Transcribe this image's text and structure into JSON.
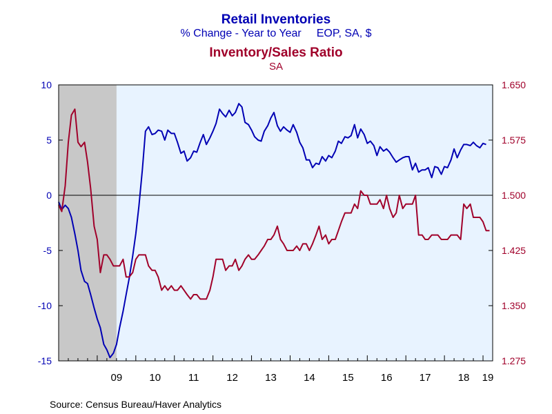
{
  "header": {
    "title1": "Retail Inventories",
    "subtitle1a": "% Change - Year to Year",
    "subtitle1b": "EOP, SA, $",
    "title2": "Inventory/Sales Ratio",
    "subtitle2": "SA"
  },
  "source": "Source:  Census Bureau/Haver Analytics",
  "colors": {
    "series1": "#0000b4",
    "series2": "#a0002a",
    "plot_bg": "#e8f3ff",
    "recession": "#c8c8c8"
  },
  "chart_data": {
    "type": "line",
    "x_tick_labels": [
      "09",
      "10",
      "11",
      "12",
      "13",
      "14",
      "15",
      "16",
      "17",
      "18",
      "19"
    ],
    "x_range": [
      2008.0,
      2019.25
    ],
    "recession_shade": [
      2008.0,
      2009.5
    ],
    "grid": false,
    "legend": "none",
    "left_axis": {
      "range": [
        -15,
        10
      ],
      "ticks": [
        "10",
        "5",
        "0",
        "-5",
        "-10",
        "-15"
      ]
    },
    "right_axis": {
      "range": [
        1.275,
        1.65
      ],
      "ticks": [
        "1.650",
        "1.575",
        "1.500",
        "1.425",
        "1.350",
        "1.275"
      ]
    },
    "series": [
      {
        "axis": "left",
        "points": [
          [
            2008.0,
            -0.6
          ],
          [
            2008.08,
            -1.3
          ],
          [
            2008.17,
            -0.9
          ],
          [
            2008.25,
            -1.2
          ],
          [
            2008.33,
            -2.0
          ],
          [
            2008.42,
            -3.5
          ],
          [
            2008.5,
            -5.0
          ],
          [
            2008.58,
            -6.8
          ],
          [
            2008.67,
            -7.8
          ],
          [
            2008.75,
            -8.0
          ],
          [
            2008.83,
            -9.0
          ],
          [
            2008.92,
            -10.2
          ],
          [
            2009.0,
            -11.2
          ],
          [
            2009.08,
            -12.0
          ],
          [
            2009.17,
            -13.5
          ],
          [
            2009.25,
            -14.0
          ],
          [
            2009.33,
            -14.7
          ],
          [
            2009.42,
            -14.3
          ],
          [
            2009.5,
            -13.5
          ],
          [
            2009.58,
            -12.0
          ],
          [
            2009.67,
            -10.5
          ],
          [
            2009.75,
            -9.0
          ],
          [
            2009.83,
            -7.5
          ],
          [
            2009.92,
            -5.5
          ],
          [
            2010.0,
            -3.5
          ],
          [
            2010.08,
            -1.0
          ],
          [
            2010.17,
            2.3
          ],
          [
            2010.25,
            5.8
          ],
          [
            2010.33,
            6.2
          ],
          [
            2010.42,
            5.5
          ],
          [
            2010.5,
            5.6
          ],
          [
            2010.58,
            5.9
          ],
          [
            2010.67,
            5.8
          ],
          [
            2010.75,
            5.0
          ],
          [
            2010.83,
            5.9
          ],
          [
            2010.92,
            5.6
          ],
          [
            2011.0,
            5.6
          ],
          [
            2011.08,
            4.8
          ],
          [
            2011.17,
            3.8
          ],
          [
            2011.25,
            4.0
          ],
          [
            2011.33,
            3.1
          ],
          [
            2011.42,
            3.4
          ],
          [
            2011.5,
            4.0
          ],
          [
            2011.58,
            3.9
          ],
          [
            2011.67,
            4.8
          ],
          [
            2011.75,
            5.5
          ],
          [
            2011.83,
            4.6
          ],
          [
            2011.92,
            5.2
          ],
          [
            2012.0,
            5.8
          ],
          [
            2012.08,
            6.5
          ],
          [
            2012.17,
            7.8
          ],
          [
            2012.25,
            7.4
          ],
          [
            2012.33,
            7.1
          ],
          [
            2012.42,
            7.7
          ],
          [
            2012.5,
            7.2
          ],
          [
            2012.58,
            7.5
          ],
          [
            2012.67,
            8.3
          ],
          [
            2012.75,
            8.0
          ],
          [
            2012.83,
            6.6
          ],
          [
            2012.92,
            6.4
          ],
          [
            2013.0,
            5.9
          ],
          [
            2013.08,
            5.3
          ],
          [
            2013.17,
            5.0
          ],
          [
            2013.25,
            4.9
          ],
          [
            2013.33,
            5.8
          ],
          [
            2013.42,
            6.3
          ],
          [
            2013.5,
            7.0
          ],
          [
            2013.58,
            7.5
          ],
          [
            2013.67,
            6.3
          ],
          [
            2013.75,
            5.8
          ],
          [
            2013.83,
            6.2
          ],
          [
            2013.92,
            5.9
          ],
          [
            2014.0,
            5.7
          ],
          [
            2014.08,
            6.4
          ],
          [
            2014.17,
            5.7
          ],
          [
            2014.25,
            4.8
          ],
          [
            2014.33,
            4.3
          ],
          [
            2014.42,
            3.2
          ],
          [
            2014.5,
            3.2
          ],
          [
            2014.58,
            2.5
          ],
          [
            2014.67,
            2.9
          ],
          [
            2014.75,
            2.8
          ],
          [
            2014.83,
            3.5
          ],
          [
            2014.92,
            3.1
          ],
          [
            2015.0,
            3.6
          ],
          [
            2015.08,
            3.4
          ],
          [
            2015.17,
            4.0
          ],
          [
            2015.25,
            4.9
          ],
          [
            2015.33,
            4.7
          ],
          [
            2015.42,
            5.3
          ],
          [
            2015.5,
            5.2
          ],
          [
            2015.58,
            5.4
          ],
          [
            2015.67,
            6.4
          ],
          [
            2015.75,
            5.2
          ],
          [
            2015.83,
            6.0
          ],
          [
            2015.92,
            5.5
          ],
          [
            2016.0,
            4.7
          ],
          [
            2016.08,
            4.9
          ],
          [
            2016.17,
            4.5
          ],
          [
            2016.25,
            3.6
          ],
          [
            2016.33,
            4.4
          ],
          [
            2016.42,
            4.0
          ],
          [
            2016.5,
            4.2
          ],
          [
            2016.58,
            3.9
          ],
          [
            2016.67,
            3.4
          ],
          [
            2016.75,
            3.0
          ],
          [
            2016.83,
            3.2
          ],
          [
            2016.92,
            3.4
          ],
          [
            2017.0,
            3.5
          ],
          [
            2017.08,
            3.5
          ],
          [
            2017.17,
            2.3
          ],
          [
            2017.25,
            2.9
          ],
          [
            2017.33,
            2.1
          ],
          [
            2017.42,
            2.3
          ],
          [
            2017.5,
            2.3
          ],
          [
            2017.58,
            2.5
          ],
          [
            2017.67,
            1.6
          ],
          [
            2017.75,
            2.6
          ],
          [
            2017.83,
            2.5
          ],
          [
            2017.92,
            1.9
          ],
          [
            2018.0,
            2.6
          ],
          [
            2018.08,
            2.5
          ],
          [
            2018.17,
            3.2
          ],
          [
            2018.25,
            4.2
          ],
          [
            2018.33,
            3.4
          ],
          [
            2018.42,
            4.1
          ],
          [
            2018.5,
            4.6
          ],
          [
            2018.58,
            4.6
          ],
          [
            2018.67,
            4.5
          ],
          [
            2018.75,
            4.8
          ],
          [
            2018.83,
            4.5
          ],
          [
            2018.92,
            4.3
          ],
          [
            2019.0,
            4.7
          ],
          [
            2019.08,
            4.6
          ]
        ]
      },
      {
        "axis": "right",
        "points": [
          [
            2008.0,
            1.487
          ],
          [
            2008.08,
            1.478
          ],
          [
            2008.17,
            1.513
          ],
          [
            2008.25,
            1.572
          ],
          [
            2008.33,
            1.609
          ],
          [
            2008.42,
            1.617
          ],
          [
            2008.5,
            1.572
          ],
          [
            2008.58,
            1.566
          ],
          [
            2008.67,
            1.572
          ],
          [
            2008.75,
            1.545
          ],
          [
            2008.83,
            1.509
          ],
          [
            2008.92,
            1.458
          ],
          [
            2009.0,
            1.44
          ],
          [
            2009.08,
            1.395
          ],
          [
            2009.17,
            1.419
          ],
          [
            2009.25,
            1.419
          ],
          [
            2009.33,
            1.413
          ],
          [
            2009.42,
            1.404
          ],
          [
            2009.5,
            1.404
          ],
          [
            2009.58,
            1.404
          ],
          [
            2009.67,
            1.413
          ],
          [
            2009.75,
            1.389
          ],
          [
            2009.83,
            1.389
          ],
          [
            2009.92,
            1.395
          ],
          [
            2010.0,
            1.413
          ],
          [
            2010.08,
            1.419
          ],
          [
            2010.17,
            1.419
          ],
          [
            2010.25,
            1.419
          ],
          [
            2010.33,
            1.404
          ],
          [
            2010.42,
            1.398
          ],
          [
            2010.5,
            1.398
          ],
          [
            2010.58,
            1.389
          ],
          [
            2010.67,
            1.371
          ],
          [
            2010.75,
            1.377
          ],
          [
            2010.83,
            1.371
          ],
          [
            2010.92,
            1.377
          ],
          [
            2011.0,
            1.371
          ],
          [
            2011.08,
            1.371
          ],
          [
            2011.17,
            1.377
          ],
          [
            2011.25,
            1.371
          ],
          [
            2011.33,
            1.365
          ],
          [
            2011.42,
            1.359
          ],
          [
            2011.5,
            1.365
          ],
          [
            2011.58,
            1.365
          ],
          [
            2011.67,
            1.359
          ],
          [
            2011.75,
            1.359
          ],
          [
            2011.83,
            1.359
          ],
          [
            2011.92,
            1.371
          ],
          [
            2012.0,
            1.389
          ],
          [
            2012.08,
            1.413
          ],
          [
            2012.17,
            1.413
          ],
          [
            2012.25,
            1.413
          ],
          [
            2012.33,
            1.398
          ],
          [
            2012.42,
            1.404
          ],
          [
            2012.5,
            1.404
          ],
          [
            2012.58,
            1.413
          ],
          [
            2012.67,
            1.398
          ],
          [
            2012.75,
            1.404
          ],
          [
            2012.83,
            1.413
          ],
          [
            2012.92,
            1.419
          ],
          [
            2013.0,
            1.413
          ],
          [
            2013.08,
            1.413
          ],
          [
            2013.17,
            1.419
          ],
          [
            2013.25,
            1.425
          ],
          [
            2013.33,
            1.431
          ],
          [
            2013.42,
            1.44
          ],
          [
            2013.5,
            1.44
          ],
          [
            2013.58,
            1.446
          ],
          [
            2013.67,
            1.458
          ],
          [
            2013.75,
            1.44
          ],
          [
            2013.83,
            1.434
          ],
          [
            2013.92,
            1.425
          ],
          [
            2014.0,
            1.425
          ],
          [
            2014.08,
            1.425
          ],
          [
            2014.17,
            1.431
          ],
          [
            2014.25,
            1.425
          ],
          [
            2014.33,
            1.434
          ],
          [
            2014.42,
            1.434
          ],
          [
            2014.5,
            1.425
          ],
          [
            2014.58,
            1.434
          ],
          [
            2014.67,
            1.446
          ],
          [
            2014.75,
            1.458
          ],
          [
            2014.83,
            1.44
          ],
          [
            2014.92,
            1.446
          ],
          [
            2015.0,
            1.434
          ],
          [
            2015.08,
            1.44
          ],
          [
            2015.17,
            1.44
          ],
          [
            2015.25,
            1.452
          ],
          [
            2015.33,
            1.464
          ],
          [
            2015.42,
            1.476
          ],
          [
            2015.5,
            1.476
          ],
          [
            2015.58,
            1.476
          ],
          [
            2015.67,
            1.488
          ],
          [
            2015.75,
            1.482
          ],
          [
            2015.83,
            1.506
          ],
          [
            2015.92,
            1.5
          ],
          [
            2016.0,
            1.5
          ],
          [
            2016.08,
            1.488
          ],
          [
            2016.17,
            1.488
          ],
          [
            2016.25,
            1.488
          ],
          [
            2016.33,
            1.494
          ],
          [
            2016.42,
            1.482
          ],
          [
            2016.5,
            1.5
          ],
          [
            2016.58,
            1.482
          ],
          [
            2016.67,
            1.47
          ],
          [
            2016.75,
            1.476
          ],
          [
            2016.83,
            1.5
          ],
          [
            2016.92,
            1.482
          ],
          [
            2017.0,
            1.488
          ],
          [
            2017.08,
            1.488
          ],
          [
            2017.17,
            1.488
          ],
          [
            2017.25,
            1.5
          ],
          [
            2017.33,
            1.446
          ],
          [
            2017.42,
            1.446
          ],
          [
            2017.5,
            1.44
          ],
          [
            2017.58,
            1.44
          ],
          [
            2017.67,
            1.446
          ],
          [
            2017.75,
            1.446
          ],
          [
            2017.83,
            1.446
          ],
          [
            2017.92,
            1.44
          ],
          [
            2018.0,
            1.44
          ],
          [
            2018.08,
            1.44
          ],
          [
            2018.17,
            1.446
          ],
          [
            2018.25,
            1.446
          ],
          [
            2018.33,
            1.446
          ],
          [
            2018.42,
            1.44
          ],
          [
            2018.5,
            1.488
          ],
          [
            2018.58,
            1.482
          ],
          [
            2018.67,
            1.488
          ],
          [
            2018.75,
            1.47
          ],
          [
            2018.83,
            1.47
          ],
          [
            2018.92,
            1.47
          ],
          [
            2019.0,
            1.464
          ],
          [
            2019.08,
            1.452
          ],
          [
            2019.17,
            1.452
          ]
        ]
      }
    ]
  }
}
